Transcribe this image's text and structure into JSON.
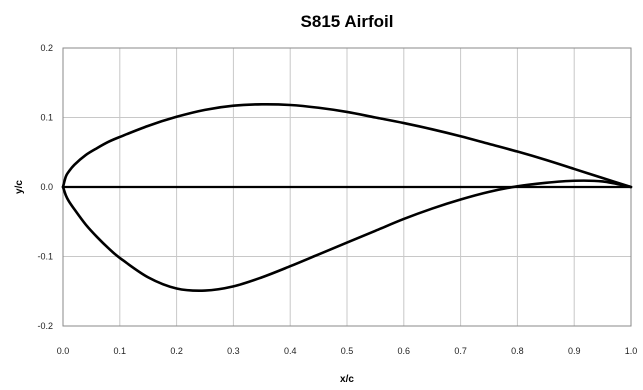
{
  "chart_data": {
    "type": "line",
    "title": "S815 Airfoil",
    "xlabel": "x/c",
    "ylabel": "y/c",
    "xlim": [
      0.0,
      1.0
    ],
    "ylim": [
      -0.2,
      0.2
    ],
    "x_ticks": [
      "0.0",
      "0.1",
      "0.2",
      "0.3",
      "0.4",
      "0.5",
      "0.6",
      "0.7",
      "0.8",
      "0.9",
      "1.0"
    ],
    "y_ticks": [
      "-0.2",
      "-0.1",
      "0.0",
      "0.1",
      "0.2"
    ],
    "grid": true,
    "legend": "none",
    "series": [
      {
        "x": [
          0.0,
          0.005,
          0.01,
          0.02,
          0.04,
          0.06,
          0.08,
          0.1,
          0.15,
          0.2,
          0.25,
          0.3,
          0.35,
          0.4,
          0.45,
          0.5,
          0.55,
          0.6,
          0.65,
          0.7,
          0.75,
          0.8,
          0.85,
          0.9,
          0.95,
          1.0
        ],
        "y": [
          0.0,
          0.015,
          0.022,
          0.032,
          0.046,
          0.056,
          0.065,
          0.072,
          0.088,
          0.101,
          0.111,
          0.117,
          0.119,
          0.118,
          0.114,
          0.108,
          0.1,
          0.092,
          0.083,
          0.073,
          0.062,
          0.051,
          0.039,
          0.026,
          0.013,
          0.0
        ]
      },
      {
        "x": [
          0.0,
          0.005,
          0.01,
          0.02,
          0.04,
          0.06,
          0.08,
          0.1,
          0.15,
          0.2,
          0.25,
          0.3,
          0.35,
          0.4,
          0.45,
          0.5,
          0.55,
          0.6,
          0.65,
          0.7,
          0.75,
          0.8,
          0.85,
          0.9,
          0.95,
          1.0
        ],
        "y": [
          0.0,
          -0.012,
          -0.02,
          -0.032,
          -0.054,
          -0.072,
          -0.088,
          -0.102,
          -0.13,
          -0.146,
          -0.149,
          -0.143,
          -0.13,
          -0.114,
          -0.097,
          -0.08,
          -0.063,
          -0.046,
          -0.031,
          -0.018,
          -0.007,
          0.001,
          0.006,
          0.009,
          0.008,
          0.0
        ]
      },
      {
        "x": [
          0.0,
          1.0
        ],
        "y": [
          0.0,
          0.0
        ]
      }
    ]
  }
}
